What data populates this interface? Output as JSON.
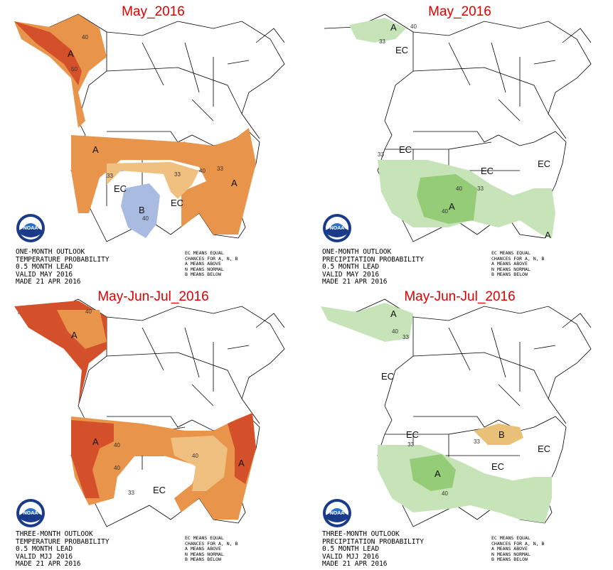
{
  "panels": [
    {
      "id": "temp-1m",
      "title": "May_2016",
      "caption": [
        "ONE-MONTH OUTLOOK",
        "TEMPERATURE PROBABILITY",
        "0.5 MONTH LEAD",
        "VALID MAY 2016",
        "MADE 21 APR 2016"
      ],
      "legend": [
        "EC MEANS EQUAL",
        "CHANCES FOR A, N, B",
        "A MEANS ABOVE",
        "N MEANS NORMAL",
        "B MEANS BELOW"
      ],
      "labels": [
        "A",
        "A",
        "A",
        "B",
        "EC",
        "EC"
      ],
      "contours": [
        "40",
        "50",
        "33",
        "33",
        "40",
        "40",
        "33"
      ]
    },
    {
      "id": "precip-1m",
      "title": "May_2016",
      "caption": [
        "ONE-MONTH OUTLOOK",
        "PRECIPITATION PROBABILITY",
        "0.5 MONTH LEAD",
        "VALID MAY 2016",
        "MADE 21 APR 2016"
      ],
      "legend": [
        "EC MEANS EQUAL",
        "CHANCES FOR A, N, B",
        "A MEANS ABOVE",
        "N MEANS NORMAL",
        "B MEANS BELOW"
      ],
      "labels": [
        "A",
        "EC",
        "EC",
        "EC",
        "EC",
        "A",
        "A"
      ],
      "contours": [
        "40",
        "33",
        "33",
        "40",
        "33",
        "40"
      ]
    },
    {
      "id": "temp-3m",
      "title": "May-Jun-Jul_2016",
      "caption": [
        "THREE-MONTH OUTLOOK",
        "TEMPERATURE PROBABILITY",
        "0.5 MONTH LEAD",
        "VALID MJJ 2016",
        "MADE 21 APR 2016"
      ],
      "legend": [
        "EC MEANS EQUAL",
        "CHANCES FOR A, N, B",
        "A MEANS ABOVE",
        "N MEANS NORMAL",
        "B MEANS BELOW"
      ],
      "labels": [
        "A",
        "A",
        "A",
        "EC"
      ],
      "contours": [
        "40",
        "40",
        "40",
        "33",
        "40"
      ]
    },
    {
      "id": "precip-3m",
      "title": "May-Jun-Jul_2016",
      "caption": [
        "THREE-MONTH OUTLOOK",
        "PRECIPITATION PROBABILITY",
        "0.5 MONTH LEAD",
        "VALID MJJ 2016",
        "MADE 21 APR 2016"
      ],
      "legend": [
        "EC MEANS EQUAL",
        "CHANCES FOR A, N, B",
        "A MEANS ABOVE",
        "N MEANS NORMAL",
        "B MEANS BELOW"
      ],
      "labels": [
        "A",
        "EC",
        "EC",
        "B",
        "EC",
        "EC",
        "A"
      ],
      "contours": [
        "40",
        "33",
        "33",
        "33",
        "40"
      ]
    }
  ],
  "colors": {
    "above_temp_low": "#f0c080",
    "above_temp_mid": "#e8944a",
    "above_temp_high": "#d4502a",
    "below_temp": "#a9bbe0",
    "above_precip_low": "#c6e4b8",
    "above_precip_mid": "#94cc78",
    "below_precip": "#e8c078",
    "title": "#e00000"
  },
  "logo_text": "NOAA"
}
